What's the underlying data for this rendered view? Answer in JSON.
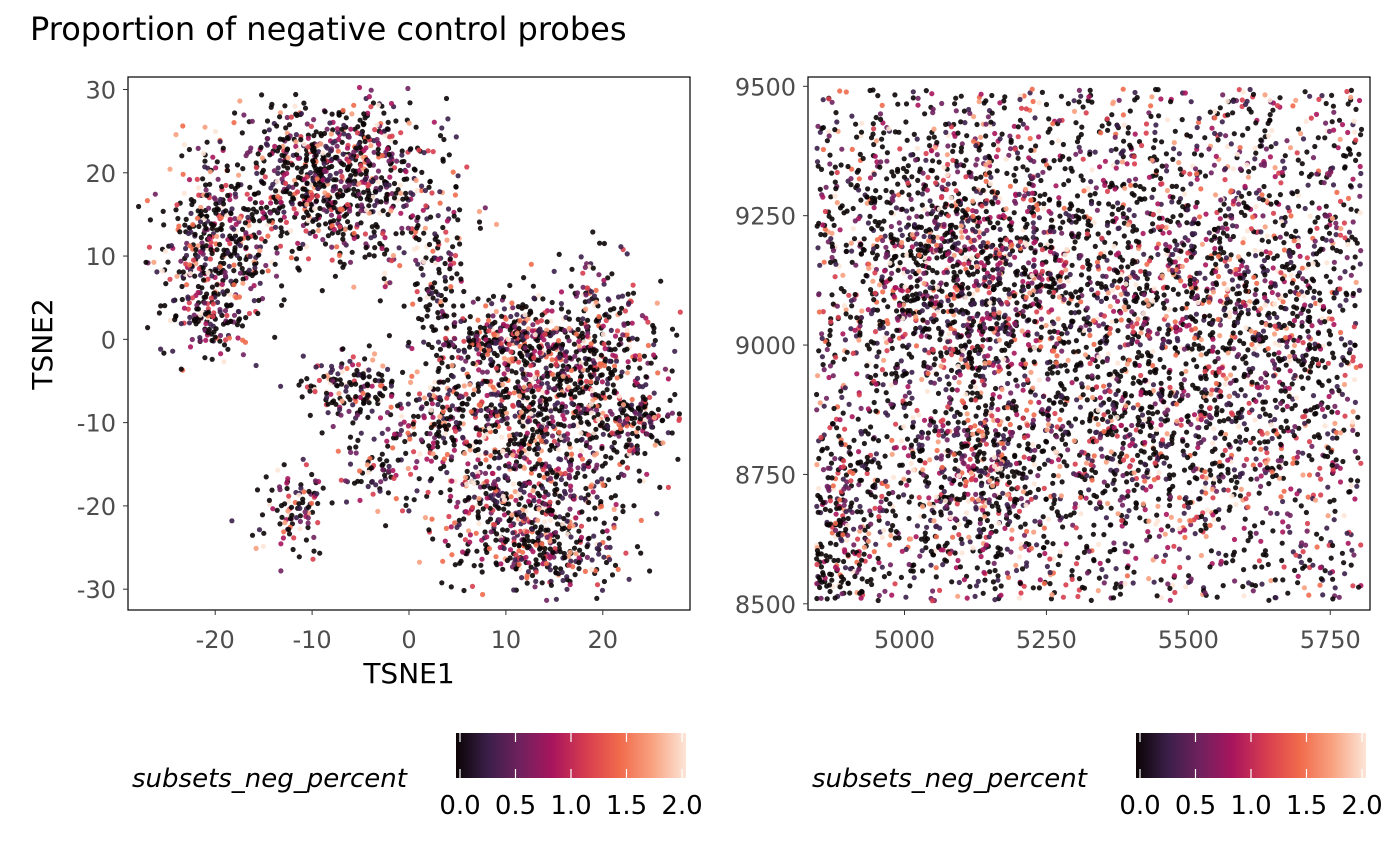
{
  "title": "Proportion of negative control probes",
  "palette": [
    "#0b0405",
    "#3b1f4a",
    "#70215e",
    "#a8155d",
    "#d83e4f",
    "#f06a4b",
    "#f8a07e",
    "#fde5d8"
  ],
  "chart_data": [
    {
      "type": "scatter",
      "name": "tsne",
      "xlabel": "TSNE1",
      "ylabel": "TSNE2",
      "xlim": [
        -29,
        29
      ],
      "ylim": [
        -32.5,
        31.5
      ],
      "xticks": [
        -20,
        -10,
        0,
        10,
        20
      ],
      "xtick_labels": [
        "-20",
        "-10",
        "0",
        "10",
        "20"
      ],
      "yticks": [
        30,
        20,
        10,
        0,
        -10,
        -20,
        -30
      ],
      "ytick_labels": [
        "30",
        "20",
        "10",
        "0",
        "-10",
        "-20",
        "-30"
      ],
      "grid": false,
      "color_variable": "subsets_neg_percent",
      "color_range": [
        0,
        2
      ],
      "legend_position": "bottom",
      "legend_ticks": [
        "0.0",
        "0.5",
        "1.0",
        "1.5",
        "2.0"
      ],
      "clusters": [
        {
          "cx": -8,
          "cy": 19,
          "sx": 5.5,
          "sy": 5.0,
          "n": 900
        },
        {
          "cx": -20,
          "cy": 11,
          "sx": 3.0,
          "sy": 5.5,
          "n": 380
        },
        {
          "cx": -20,
          "cy": 2,
          "sx": 2.5,
          "sy": 2.0,
          "n": 90
        },
        {
          "cx": 3,
          "cy": 9,
          "sx": 1.5,
          "sy": 6.5,
          "n": 120
        },
        {
          "cx": -6,
          "cy": -6,
          "sx": 2.5,
          "sy": 2.0,
          "n": 140
        },
        {
          "cx": -12,
          "cy": -21,
          "sx": 2.0,
          "sy": 2.5,
          "n": 100
        },
        {
          "cx": -3,
          "cy": -16,
          "sx": 2.0,
          "sy": 2.0,
          "n": 60
        },
        {
          "cx": 10,
          "cy": 0,
          "sx": 4.0,
          "sy": 2.0,
          "n": 280
        },
        {
          "cx": 19,
          "cy": 0,
          "sx": 4.0,
          "sy": 4.5,
          "n": 300
        },
        {
          "cx": 14,
          "cy": -8,
          "sx": 6.0,
          "sy": 4.0,
          "n": 650
        },
        {
          "cx": 12,
          "cy": -20,
          "sx": 5.0,
          "sy": 4.0,
          "n": 520
        },
        {
          "cx": 14,
          "cy": -26,
          "sx": 3.0,
          "sy": 2.0,
          "n": 150
        },
        {
          "cx": 24,
          "cy": -10,
          "sx": 2.0,
          "sy": 2.5,
          "n": 100
        },
        {
          "cx": 3,
          "cy": -10,
          "sx": 3.0,
          "sy": 3.0,
          "n": 160
        }
      ]
    },
    {
      "type": "scatter",
      "name": "spatial",
      "xlim": [
        4830,
        5820
      ],
      "ylim": [
        8488,
        9518
      ],
      "xticks": [
        5000,
        5250,
        5500,
        5750
      ],
      "xtick_labels": [
        "5000",
        "5250",
        "5500",
        "5750"
      ],
      "yticks": [
        9500,
        9250,
        9000,
        8750,
        8500
      ],
      "ytick_labels": [
        "9500",
        "9250",
        "9000",
        "8750",
        "8500"
      ],
      "grid": false,
      "color_variable": "subsets_neg_percent",
      "color_range": [
        0,
        2
      ],
      "legend_position": "bottom",
      "legend_ticks": [
        "0.0",
        "0.5",
        "1.0",
        "1.5",
        "2.0"
      ],
      "x_extent": [
        4845,
        5805
      ],
      "y_extent": [
        8505,
        9495
      ],
      "dense_regions": [
        {
          "cx": 5100,
          "cy": 9150,
          "sx": 110,
          "sy": 130,
          "n": 900
        },
        {
          "cx": 5130,
          "cy": 8750,
          "sx": 90,
          "sy": 100,
          "n": 450
        },
        {
          "cx": 5400,
          "cy": 9100,
          "sx": 170,
          "sy": 160,
          "n": 700
        },
        {
          "cx": 5640,
          "cy": 9050,
          "sx": 120,
          "sy": 180,
          "n": 500
        },
        {
          "cx": 4890,
          "cy": 8650,
          "sx": 40,
          "sy": 90,
          "n": 200
        },
        {
          "cx": 5450,
          "cy": 8820,
          "sx": 120,
          "sy": 80,
          "n": 250
        }
      ],
      "uniform_points": 2600
    }
  ],
  "legends": [
    {
      "title": "subsets_neg_percent",
      "ticks": [
        "0.0",
        "0.5",
        "1.0",
        "1.5",
        "2.0"
      ]
    },
    {
      "title": "subsets_neg_percent",
      "ticks": [
        "0.0",
        "0.5",
        "1.0",
        "1.5",
        "2.0"
      ]
    }
  ]
}
